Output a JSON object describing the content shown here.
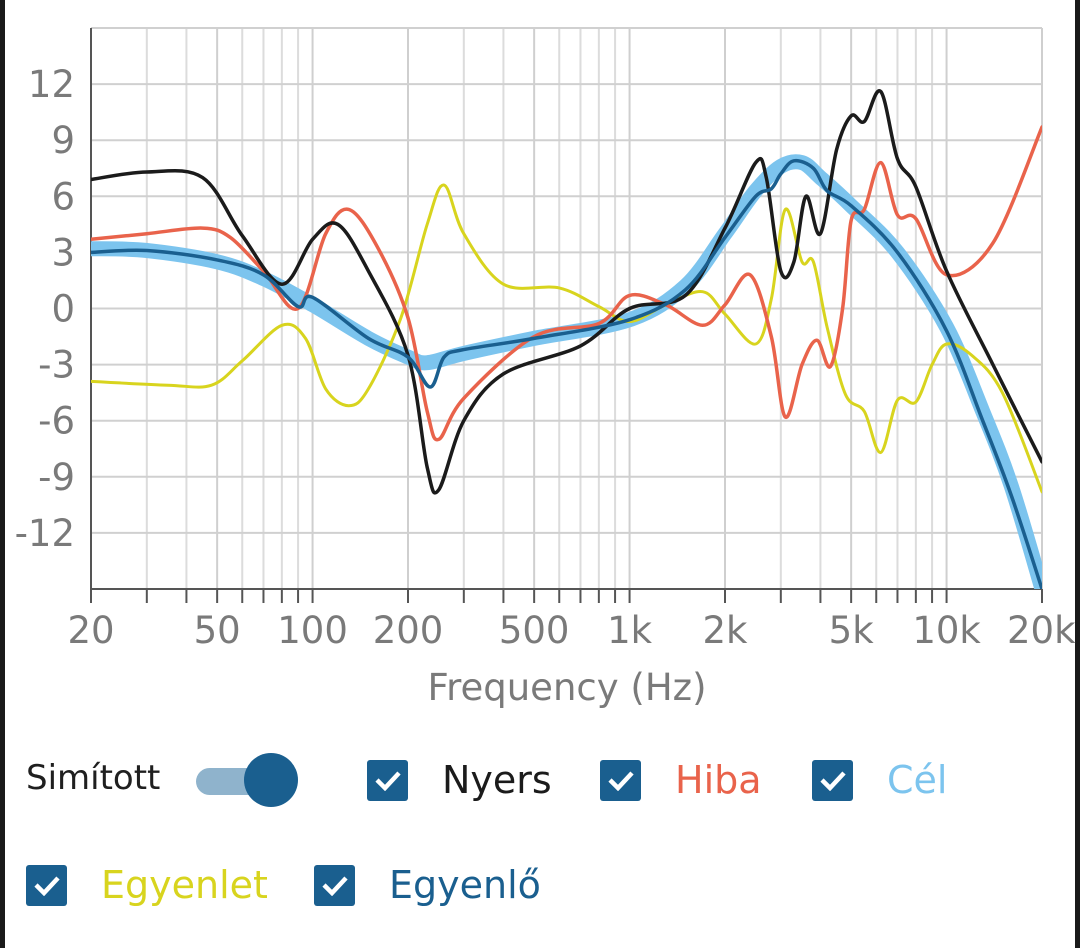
{
  "chart_data": {
    "type": "line",
    "xlabel": "Frequency (Hz)",
    "ylabel": "",
    "x_scale": "log",
    "xlim": [
      20,
      20000
    ],
    "ylim": [
      -15,
      15
    ],
    "grid": true,
    "x_ticks": [
      {
        "value": 20,
        "label": "20"
      },
      {
        "value": 50,
        "label": "50"
      },
      {
        "value": 100,
        "label": "100"
      },
      {
        "value": 200,
        "label": "200"
      },
      {
        "value": 500,
        "label": "500"
      },
      {
        "value": 1000,
        "label": "1k"
      },
      {
        "value": 2000,
        "label": "2k"
      },
      {
        "value": 5000,
        "label": "5k"
      },
      {
        "value": 10000,
        "label": "10k"
      },
      {
        "value": 20000,
        "label": "20k"
      }
    ],
    "y_ticks": [
      {
        "value": 12,
        "label": "12"
      },
      {
        "value": 9,
        "label": "9"
      },
      {
        "value": 6,
        "label": "6"
      },
      {
        "value": 3,
        "label": "3"
      },
      {
        "value": 0,
        "label": "0"
      },
      {
        "value": -3,
        "label": "-3"
      },
      {
        "value": -6,
        "label": "-6"
      },
      {
        "value": -9,
        "label": "-9"
      },
      {
        "value": -12,
        "label": "-12"
      }
    ],
    "series": [
      {
        "name": "Cél",
        "color": "#7cc4ee",
        "points": [
          [
            20,
            3.2
          ],
          [
            30,
            3.1
          ],
          [
            50,
            2.5
          ],
          [
            70,
            1.6
          ],
          [
            100,
            0.2
          ],
          [
            150,
            -1.6
          ],
          [
            200,
            -2.6
          ],
          [
            230,
            -2.9
          ],
          [
            300,
            -2.4
          ],
          [
            500,
            -1.6
          ],
          [
            1000,
            -0.6
          ],
          [
            1500,
            1.2
          ],
          [
            2000,
            4.0
          ],
          [
            2500,
            6.3
          ],
          [
            3000,
            7.6
          ],
          [
            3500,
            7.8
          ],
          [
            4000,
            7.0
          ],
          [
            5000,
            5.5
          ],
          [
            7000,
            3.0
          ],
          [
            10000,
            -1.0
          ],
          [
            13000,
            -5.5
          ],
          [
            16000,
            -9.5
          ],
          [
            20000,
            -15
          ]
        ]
      },
      {
        "name": "Egyenlő",
        "color": "#1a5f8f",
        "points": [
          [
            20,
            3.0
          ],
          [
            30,
            3.1
          ],
          [
            50,
            2.6
          ],
          [
            70,
            1.8
          ],
          [
            90,
            0.1
          ],
          [
            100,
            0.6
          ],
          [
            150,
            -1.6
          ],
          [
            200,
            -2.6
          ],
          [
            235,
            -4.2
          ],
          [
            260,
            -2.6
          ],
          [
            300,
            -2.2
          ],
          [
            500,
            -1.6
          ],
          [
            1000,
            -0.6
          ],
          [
            1500,
            1.0
          ],
          [
            2000,
            3.8
          ],
          [
            2500,
            6.0
          ],
          [
            2800,
            6.4
          ],
          [
            3000,
            7.2
          ],
          [
            3300,
            7.9
          ],
          [
            3800,
            7.5
          ],
          [
            4200,
            6.3
          ],
          [
            5000,
            5.5
          ],
          [
            7000,
            3.0
          ],
          [
            10000,
            -1.2
          ],
          [
            13000,
            -6.0
          ],
          [
            16000,
            -10.0
          ],
          [
            20000,
            -15
          ]
        ]
      },
      {
        "name": "Nyers",
        "color": "#1b1b1b",
        "points": [
          [
            20,
            6.9
          ],
          [
            30,
            7.3
          ],
          [
            45,
            7.0
          ],
          [
            60,
            3.9
          ],
          [
            80,
            1.3
          ],
          [
            100,
            3.7
          ],
          [
            120,
            4.5
          ],
          [
            150,
            2.0
          ],
          [
            200,
            -2.5
          ],
          [
            230,
            -8.5
          ],
          [
            250,
            -9.7
          ],
          [
            300,
            -6.0
          ],
          [
            400,
            -3.5
          ],
          [
            700,
            -2.0
          ],
          [
            1000,
            0
          ],
          [
            1500,
            0.7
          ],
          [
            2000,
            4.3
          ],
          [
            2500,
            7.8
          ],
          [
            2700,
            7.0
          ],
          [
            3000,
            2.0
          ],
          [
            3300,
            2.5
          ],
          [
            3600,
            6.0
          ],
          [
            4000,
            4.0
          ],
          [
            4500,
            8.5
          ],
          [
            5000,
            10.3
          ],
          [
            5500,
            10.0
          ],
          [
            6200,
            11.6
          ],
          [
            7000,
            8.0
          ],
          [
            8000,
            6.5
          ],
          [
            10000,
            2.0
          ],
          [
            14000,
            -3.0
          ],
          [
            20000,
            -8.2
          ]
        ]
      },
      {
        "name": "Hiba",
        "color": "#e9634b",
        "points": [
          [
            20,
            3.7
          ],
          [
            30,
            4.0
          ],
          [
            45,
            4.3
          ],
          [
            55,
            3.8
          ],
          [
            70,
            2.0
          ],
          [
            90,
            0
          ],
          [
            110,
            4.0
          ],
          [
            130,
            5.3
          ],
          [
            160,
            3.3
          ],
          [
            200,
            -0.5
          ],
          [
            230,
            -5.5
          ],
          [
            250,
            -7.0
          ],
          [
            300,
            -4.8
          ],
          [
            500,
            -1.5
          ],
          [
            800,
            -0.8
          ],
          [
            1000,
            0.7
          ],
          [
            1300,
            0.2
          ],
          [
            1700,
            -0.9
          ],
          [
            2000,
            0.2
          ],
          [
            2400,
            1.8
          ],
          [
            2800,
            -1.5
          ],
          [
            3100,
            -5.8
          ],
          [
            3500,
            -3.0
          ],
          [
            3900,
            -1.7
          ],
          [
            4300,
            -3.1
          ],
          [
            4700,
            0.0
          ],
          [
            5000,
            4.7
          ],
          [
            5500,
            5.3
          ],
          [
            6200,
            7.8
          ],
          [
            7000,
            5.0
          ],
          [
            8000,
            4.8
          ],
          [
            10000,
            1.8
          ],
          [
            14000,
            3.5
          ],
          [
            20000,
            9.7
          ]
        ]
      },
      {
        "name": "Egyenlet",
        "color": "#d8d41e",
        "points": [
          [
            20,
            -3.9
          ],
          [
            35,
            -4.1
          ],
          [
            48,
            -4.1
          ],
          [
            60,
            -2.8
          ],
          [
            80,
            -0.9
          ],
          [
            95,
            -1.6
          ],
          [
            110,
            -4.3
          ],
          [
            130,
            -5.2
          ],
          [
            150,
            -4.3
          ],
          [
            190,
            -0.5
          ],
          [
            230,
            4.5
          ],
          [
            260,
            6.6
          ],
          [
            300,
            4.0
          ],
          [
            400,
            1.3
          ],
          [
            600,
            1.1
          ],
          [
            800,
            0.1
          ],
          [
            1000,
            -0.7
          ],
          [
            1300,
            0.2
          ],
          [
            1700,
            0.9
          ],
          [
            2000,
            -0.3
          ],
          [
            2500,
            -1.9
          ],
          [
            2800,
            0.5
          ],
          [
            3100,
            5.3
          ],
          [
            3500,
            2.5
          ],
          [
            3800,
            2.5
          ],
          [
            4200,
            -1.0
          ],
          [
            4800,
            -4.6
          ],
          [
            5500,
            -5.5
          ],
          [
            6200,
            -7.7
          ],
          [
            7000,
            -4.9
          ],
          [
            8000,
            -5.0
          ],
          [
            9000,
            -3.0
          ],
          [
            10000,
            -1.9
          ],
          [
            12000,
            -2.5
          ],
          [
            15000,
            -4.5
          ],
          [
            20000,
            -9.8
          ]
        ]
      }
    ]
  },
  "controls": {
    "smoothed_label": "Simított",
    "smoothed_on": true,
    "toggles": [
      {
        "label": "Nyers",
        "checked": true,
        "color": "#1b1b1b"
      },
      {
        "label": "Hiba",
        "checked": true,
        "color": "#e9634b"
      },
      {
        "label": "Cél",
        "checked": true,
        "color": "#7cc4ee"
      },
      {
        "label": "Egyenlet",
        "checked": true,
        "color": "#d8d41e"
      },
      {
        "label": "Egyenlő",
        "checked": true,
        "color": "#1a5f8f"
      }
    ]
  }
}
